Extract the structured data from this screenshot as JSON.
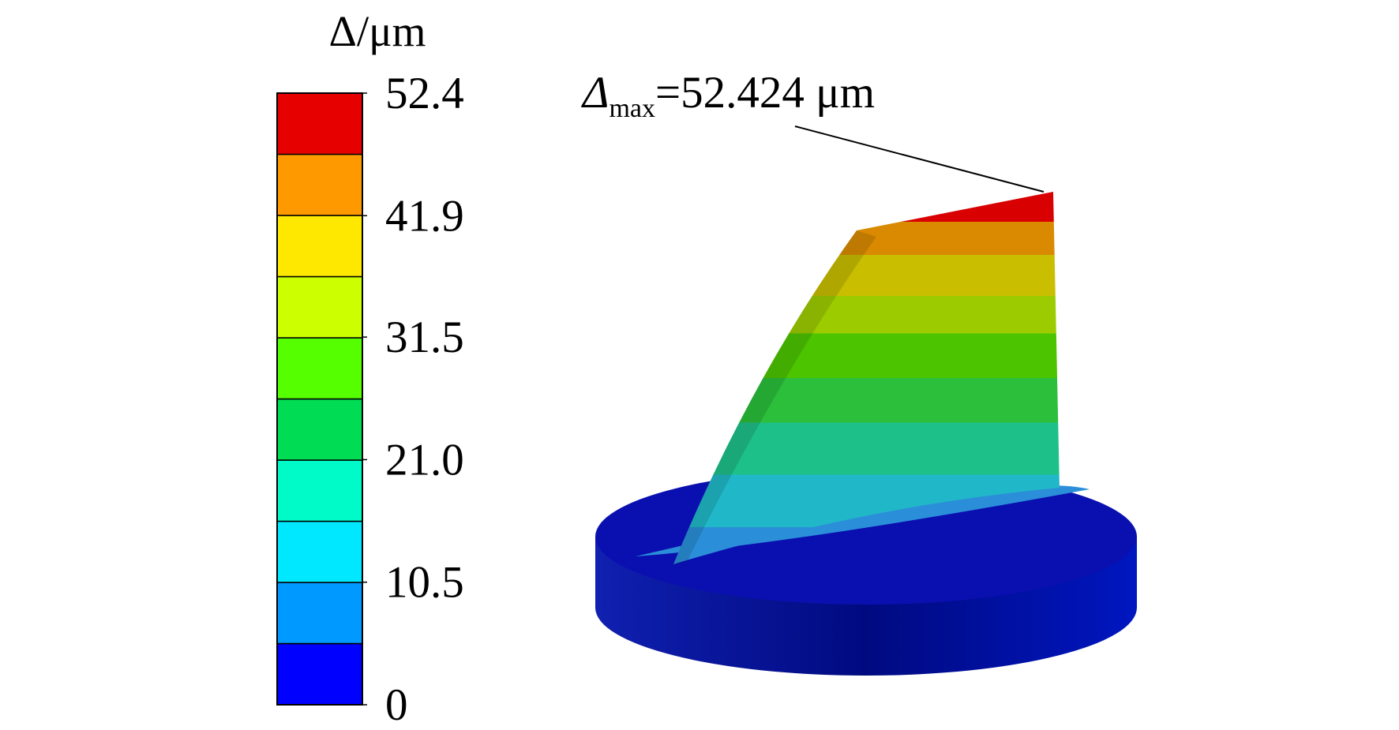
{
  "colorbar": {
    "title": "Δ/μm",
    "lim": [
      0,
      52.4
    ],
    "ticks": [
      0,
      10.5,
      {
        "value": 21,
        "label": "21.0"
      },
      31.5,
      41.9,
      52.4
    ],
    "colors": [
      "#0000ff",
      "#0099ff",
      "#00e8ff",
      "#00fbc8",
      "#00dd55",
      "#55ff00",
      "#ccff00",
      "#ffe800",
      "#ff9900",
      "#e60000"
    ]
  },
  "annotation": {
    "symbol": "Δ",
    "subscript": "max",
    "text": "=52.424 μm"
  }
}
